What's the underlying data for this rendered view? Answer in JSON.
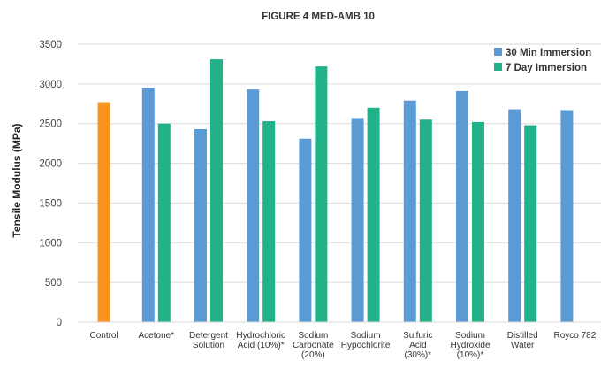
{
  "chart_data": {
    "type": "bar",
    "title": "FIGURE 4 MED-AMB 10",
    "ylabel": "Tensile Modulus (MPa)",
    "xlabel": "",
    "ylim": [
      0,
      3500
    ],
    "yticks": [
      0,
      500,
      1000,
      1500,
      2000,
      2500,
      3000,
      3500
    ],
    "grid": true,
    "legend_position": "top-right",
    "categories": [
      "Control",
      "Acetone*",
      "Detergent Solution",
      "Hydrochloric Acid (10%)*",
      "Sodium Carbonate (20%)",
      "Sodium Hypochlorite",
      "Sulfuric Acid (30%)*",
      "Sodium Hydroxide (10%)*",
      "Distilled Water",
      "Royco 782"
    ],
    "category_label_lines": [
      [
        "Control"
      ],
      [
        "Acetone*"
      ],
      [
        "Detergent",
        "Solution"
      ],
      [
        "Hydrochloric",
        "Acid (10%)*"
      ],
      [
        "Sodium",
        "Carbonate",
        "(20%)"
      ],
      [
        "Sodium",
        "Hypochlorite"
      ],
      [
        "Sulfuric",
        "Acid",
        "(30%)*"
      ],
      [
        "Sodium",
        "Hydroxide",
        "(10%)*"
      ],
      [
        "Distilled",
        "Water"
      ],
      [
        "Royco 782"
      ]
    ],
    "control": {
      "category": "Control",
      "value": 2770,
      "color": "#f7931e"
    },
    "series": [
      {
        "name": "30 Min Immersion",
        "color": "#5b9bd5",
        "values": [
          null,
          2950,
          2430,
          2930,
          2310,
          2570,
          2790,
          2910,
          2680,
          2670
        ]
      },
      {
        "name": "7 Day Immersion",
        "color": "#22b28a",
        "values": [
          null,
          2500,
          3310,
          2530,
          3220,
          2700,
          2550,
          2520,
          2480,
          null
        ]
      }
    ]
  }
}
